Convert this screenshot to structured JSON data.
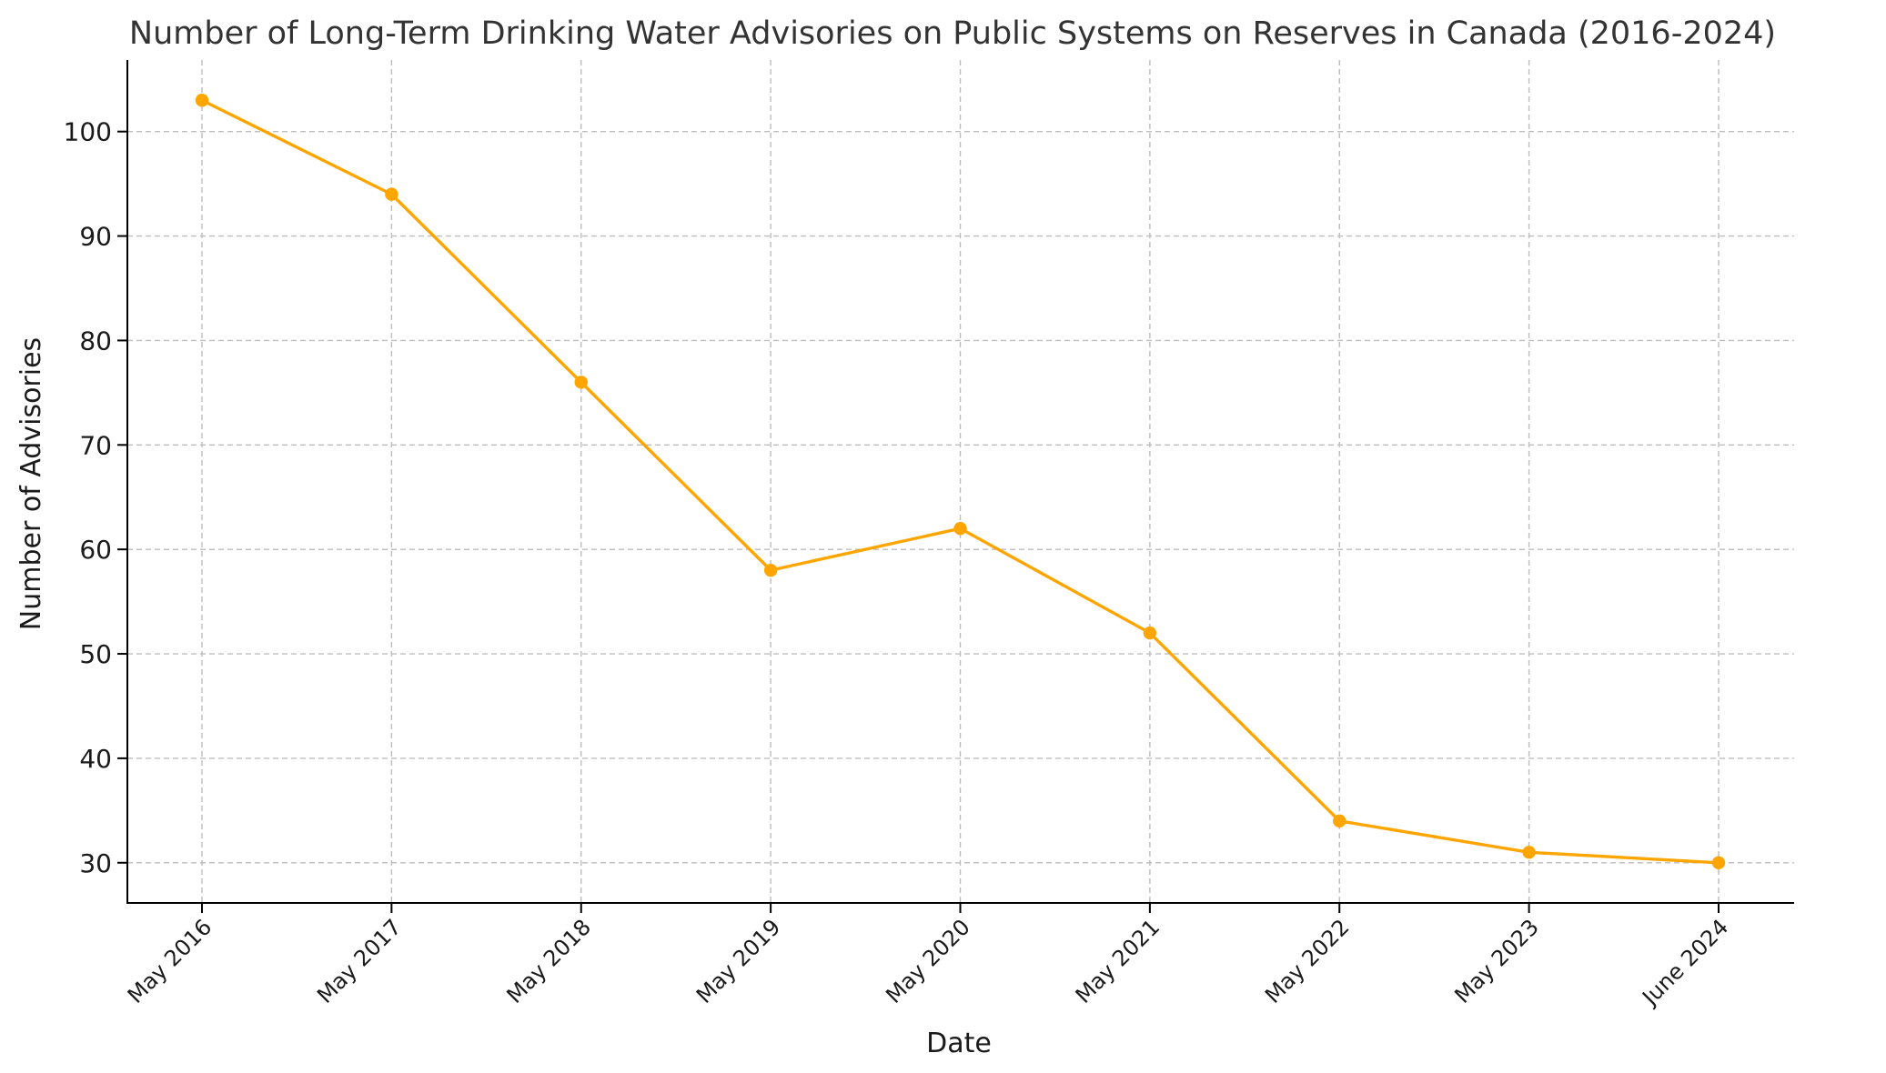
{
  "chart_data": {
    "type": "line",
    "title": "Number of Long-Term Drinking Water Advisories on Public Systems on Reserves in Canada (2016-2024)",
    "xlabel": "Date",
    "ylabel": "Number of Advisories",
    "categories": [
      "May 2016",
      "May 2017",
      "May 2018",
      "May 2019",
      "May 2020",
      "May 2021",
      "May 2022",
      "May 2023",
      "June 2024"
    ],
    "series": [
      {
        "name": "Long-Term Drinking Water Advisories",
        "values": [
          103,
          94,
          76,
          58,
          62,
          52,
          34,
          31,
          30
        ],
        "color": "#FFA500"
      }
    ],
    "yticks": [
      30,
      40,
      50,
      60,
      70,
      80,
      90,
      100
    ],
    "ylim": [
      26.15,
      106.85
    ],
    "grid": true,
    "marker": "circle"
  }
}
